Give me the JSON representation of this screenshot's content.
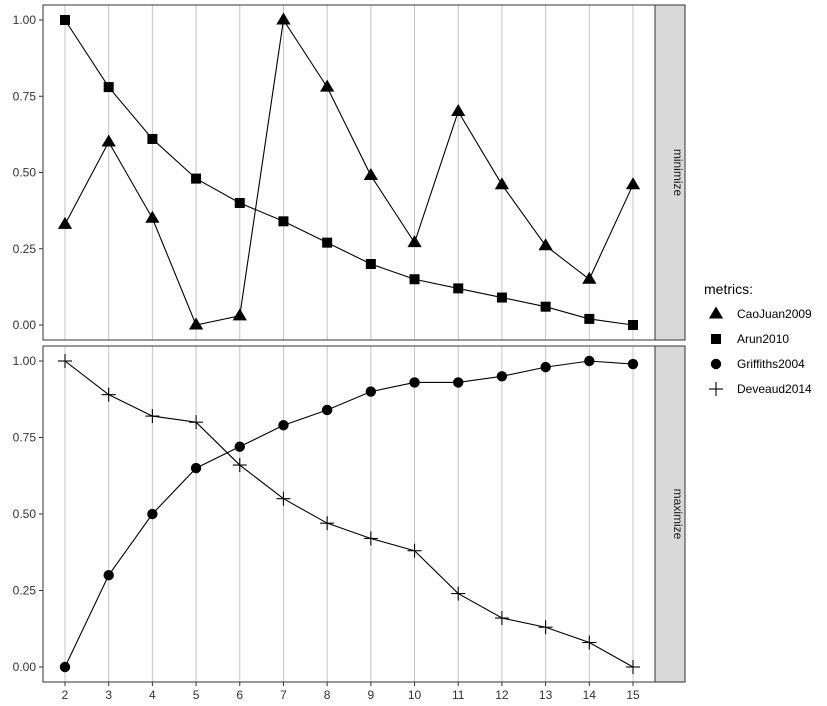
{
  "chart_data": {
    "type": "line",
    "x": [
      2,
      3,
      4,
      5,
      6,
      7,
      8,
      9,
      10,
      11,
      12,
      13,
      14,
      15
    ],
    "xlim": [
      2,
      15
    ],
    "legend_title": "metrics:",
    "legend_position": "right",
    "grid": "vertical",
    "panels": [
      {
        "strip": "minimize",
        "ylim": [
          0,
          1
        ],
        "yticks": [
          "0.00",
          "0.25",
          "0.50",
          "0.75",
          "1.00"
        ],
        "series": [
          {
            "name": "CaoJuan2009",
            "marker": "triangle",
            "values": [
              0.33,
              0.6,
              0.35,
              0.0,
              0.03,
              1.0,
              0.78,
              0.49,
              0.27,
              0.7,
              0.46,
              0.26,
              0.15,
              0.46
            ]
          },
          {
            "name": "Arun2010",
            "marker": "square",
            "values": [
              1.0,
              0.78,
              0.61,
              0.48,
              0.4,
              0.34,
              0.27,
              0.2,
              0.15,
              0.12,
              0.09,
              0.06,
              0.02,
              0.0
            ]
          }
        ]
      },
      {
        "strip": "maximize",
        "ylim": [
          0,
          1
        ],
        "yticks": [
          "0.00",
          "0.25",
          "0.50",
          "0.75",
          "1.00"
        ],
        "series": [
          {
            "name": "Griffiths2004",
            "marker": "circle",
            "values": [
              0.0,
              0.3,
              0.5,
              0.65,
              0.72,
              0.79,
              0.84,
              0.9,
              0.93,
              0.93,
              0.95,
              0.98,
              1.0,
              0.99
            ]
          },
          {
            "name": "Deveaud2014",
            "marker": "cross",
            "values": [
              1.0,
              0.89,
              0.82,
              0.8,
              0.66,
              0.55,
              0.47,
              0.42,
              0.38,
              0.24,
              0.16,
              0.13,
              0.08,
              0.0
            ]
          }
        ]
      }
    ]
  }
}
